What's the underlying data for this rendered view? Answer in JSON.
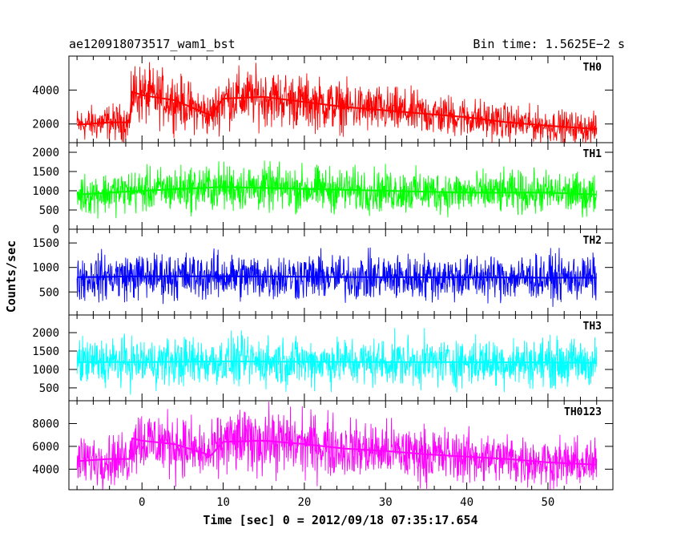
{
  "header": {
    "title": "ae120918073517_wam1_bst",
    "bin_time": "Bin time: 1.5625E−2 s"
  },
  "xlabel": "Time [sec] 0 = 2012/09/18 07:35:17.654",
  "ylabel": "Counts/sec",
  "chart_data": [
    {
      "type": "line",
      "name": "TH0",
      "color": "#ff0000",
      "x": [
        -8,
        -4,
        -1.5,
        -1.2,
        0,
        4,
        8.5,
        10,
        15,
        20,
        25,
        30,
        35,
        40,
        45,
        50,
        56
      ],
      "y": [
        1950,
        2100,
        2100,
        3900,
        3700,
        3400,
        2500,
        3500,
        3600,
        3300,
        3000,
        2800,
        2600,
        2400,
        2100,
        1900,
        1700
      ],
      "xlim": [
        -9,
        58
      ],
      "ylim": [
        900,
        6000
      ],
      "yticks": [
        2000,
        4000
      ],
      "ytick_labels": [
        "2000",
        "4000"
      ]
    },
    {
      "type": "line",
      "name": "TH1",
      "color": "#00ff00",
      "x": [
        -8,
        0,
        10,
        20,
        30,
        40,
        50,
        56
      ],
      "y": [
        900,
        1000,
        1100,
        1050,
        1000,
        950,
        950,
        900
      ],
      "xlim": [
        -9,
        58
      ],
      "ylim": [
        0,
        2250
      ],
      "yticks": [
        0,
        500,
        1000,
        1500,
        2000
      ],
      "ytick_labels": [
        "0",
        "500",
        "1000",
        "1500",
        "2000"
      ]
    },
    {
      "type": "line",
      "name": "TH2",
      "color": "#0000ff",
      "x": [
        -8,
        0,
        10,
        20,
        30,
        40,
        50,
        56
      ],
      "y": [
        800,
        820,
        820,
        810,
        800,
        800,
        790,
        790
      ],
      "xlim": [
        -9,
        58
      ],
      "ylim": [
        30,
        1780
      ],
      "yticks": [
        500,
        1000,
        1500
      ],
      "ytick_labels": [
        "500",
        "1000",
        "1500"
      ]
    },
    {
      "type": "line",
      "name": "TH3",
      "color": "#00ffff",
      "x": [
        -8,
        0,
        10,
        20,
        30,
        40,
        50,
        56
      ],
      "y": [
        1200,
        1200,
        1220,
        1210,
        1200,
        1200,
        1190,
        1180
      ],
      "xlim": [
        -9,
        58
      ],
      "ylim": [
        150,
        2480
      ],
      "yticks": [
        500,
        1000,
        1500,
        2000
      ],
      "ytick_labels": [
        "500",
        "1000",
        "1500",
        "2000"
      ]
    },
    {
      "type": "line",
      "name": "TH0123",
      "color": "#ff00ff",
      "x": [
        -8,
        -4,
        -1.5,
        -1.2,
        0,
        4,
        8.5,
        10,
        15,
        20,
        25,
        30,
        35,
        40,
        45,
        50,
        56
      ],
      "y": [
        4700,
        4900,
        4900,
        6700,
        6500,
        6200,
        5200,
        6400,
        6500,
        6200,
        5800,
        5600,
        5300,
        5100,
        4900,
        4600,
        4400
      ],
      "xlim": [
        -9,
        58
      ],
      "ylim": [
        2200,
        10000
      ],
      "yticks": [
        4000,
        6000,
        8000
      ],
      "ytick_labels": [
        "4000",
        "6000",
        "8000"
      ]
    }
  ],
  "x_axis": {
    "ticks": [
      0,
      10,
      20,
      30,
      40,
      50
    ],
    "tick_labels": [
      "0",
      "10",
      "20",
      "30",
      "40",
      "50"
    ]
  }
}
